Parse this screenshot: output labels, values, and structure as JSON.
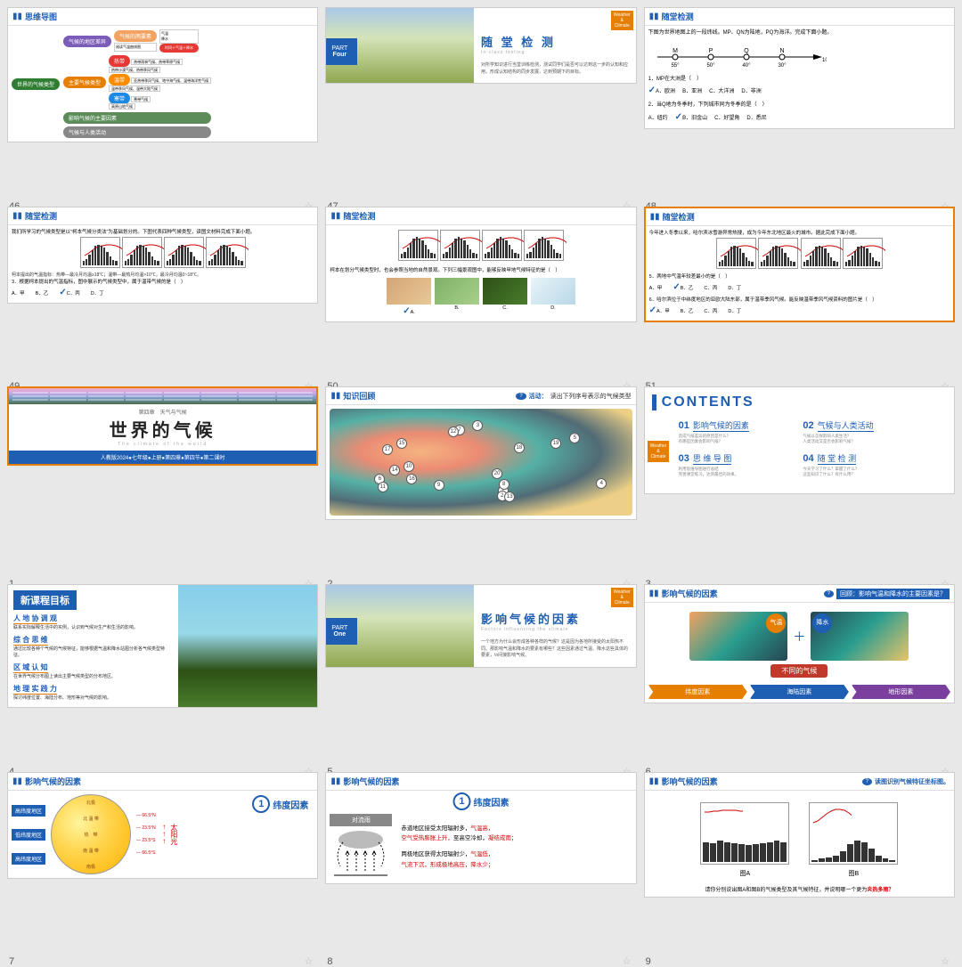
{
  "slides": [
    {
      "n": "46",
      "hdr": "思维导图",
      "type": "mindmap",
      "nodes": {
        "root": "世界的气候类型",
        "b1": "气候的地区差异",
        "b1a": "气候的两要素",
        "b1a1": "气温",
        "b1a2": "降水",
        "b1b": "阅读气温曲线图",
        "b1c": "时间＋气温＋降水",
        "b2": "主要气候类型",
        "b2a": "热带",
        "b2b": "温带",
        "b2c": "寒带",
        "b2a1": "热带雨林气候、热带草原气候",
        "b2a2": "热带沙漠气候、热带季风气候",
        "b2b1": "亚热带季风气候、地中海气候、温带海洋性气候",
        "b2b2": "温带季风气候、温带大陆气候",
        "b2c1": "寒带气候",
        "b2c2": "高原山地气候",
        "b3": "影响气候的主要因素",
        "b4": "气候与人类活动"
      },
      "colors": {
        "root": "#2e7d32",
        "b1": "#7b5cb8",
        "b2": "#e67e00",
        "b3": "#5b8c5a",
        "b4": "#888",
        "hot": "#e53935",
        "warm": "#fb8c00",
        "cold": "#1e88e5"
      }
    },
    {
      "n": "47",
      "type": "part",
      "part": "PART",
      "partnum": "Four",
      "title": "随 堂 检 测",
      "sub": "In-class testing",
      "desc": "对所学知识进行当堂训练检测，测试同学们是否可以达到这一步的认知和应用，形成认知结构的同步发展，达到预期下的目标。",
      "corner": "Weather & Climate"
    },
    {
      "n": "48",
      "hdr": "随堂检测",
      "type": "quiz",
      "text": "下图为世界地图上的一段纬线。MP、QN为陆地，PQ为海洋。完成下面小题。",
      "diagram": {
        "pts": [
          "M",
          "P",
          "Q",
          "N"
        ],
        "lons": [
          "55°",
          "50°",
          "40°",
          "30°"
        ],
        "end": "10°E"
      },
      "q1": "1．MP在大洲是（　）",
      "q1o": [
        "A．欧洲",
        "B．亚洲",
        "C．大洋洲",
        "D．非洲"
      ],
      "q1a": 0,
      "q2": "2．当Q地为冬季时，下列城市同为冬季的是（　）",
      "q2o": [
        "A．纽约",
        "B．旧金山",
        "C．好望角",
        "D．悉尼"
      ],
      "q2a": 1
    },
    {
      "n": "49",
      "hdr": "随堂检测",
      "type": "quiz2",
      "intro": "我们所学习的气候类型是以\"柯本气候分类法\"为基础划分的。下图代表四种气候类型，读图文材料完成下面小题。",
      "charts": 4,
      "note": "柯本提出的气温指标：热带—最冷月均温≥18℃；温带—最热月均温>10℃，最冷月均温0~18℃。",
      "q": "3．根据柯本提出的气温指标，图中展示的气候类型中，属于温带气候的是（　）",
      "opts": [
        "A．甲",
        "B．乙",
        "C．丙",
        "D．丁"
      ],
      "ans": 2
    },
    {
      "n": "50",
      "hdr": "随堂检测",
      "type": "quiz3",
      "intro": "柯本在划分气候类型时，也会参照当地的自然景观。下列三幅景观图中，能够反映甲地气候特征的是（　）",
      "charts": 4,
      "imgs": [
        "A",
        "B",
        "C",
        "D"
      ],
      "ans": 0
    },
    {
      "n": "51",
      "hdr": "随堂检测",
      "type": "quiz4",
      "sel": true,
      "intro": "今年进入冬季以来，哈尔滨冰雪游异常热搜，成为今年东北地区最火的城市。据此完成下面小题。",
      "charts": 2,
      "q5": "5．两地中气温年较差最小的是（　）",
      "q5o": [
        "A．甲",
        "B．乙",
        "C．丙",
        "D．丁"
      ],
      "q5a": 1,
      "q6": "6．哈尔滨位于中纬度地区的亚欧大陆东部，属于温带季风气候。能反映温带季风气候资料的图片是（　）",
      "q6o": [
        "A．甲",
        "B．乙",
        "C．丙",
        "D．丁"
      ],
      "q6a": 0
    },
    {
      "n": "1",
      "type": "cover",
      "sel": true,
      "ch": "第四章　天气与气候",
      "title": "世界的气候",
      "sub": "The climate of the world",
      "foot": "人教版2024●七年级●上册●第四章●第四节●第二课时"
    },
    {
      "n": "2",
      "hdr": "知识回顾",
      "type": "map",
      "badge": "活动",
      "badgetxt": "读出下列序号表示的气候类型"
    },
    {
      "n": "3",
      "type": "contents",
      "title": "CONTENTS",
      "items": [
        {
          "n": "01",
          "t": "影响气候的因素",
          "d": "造成气候差异的原因是什么？\\n有哪些因素会影响气候？"
        },
        {
          "n": "02",
          "t": "气候与人类活动",
          "d": "气候以怎样影响人类生活？\\n人类活动又是否会影响气候？"
        },
        {
          "n": "03",
          "t": "思 维 导 图",
          "d": "利用思维导图进行总结\\n完善课堂练习，达到最佳的效果。"
        },
        {
          "n": "04",
          "t": "随 堂 检 测",
          "d": "今天学习了什么？掌握了什么？\\n这些知识了什么？有什么用？"
        }
      ],
      "corner": "Weather & Climate"
    },
    {
      "n": "4",
      "type": "goals",
      "title": "新课程目标",
      "items": [
        {
          "t": "人 地 协 调 观",
          "d": "联系实际解释生活中的实例，认识到气候对生产和生活的影响。"
        },
        {
          "t": "综 合 思 维",
          "d": "通过比较各种个气候的气候特征，能够根据气温和降水站图分析各气候类型特征。"
        },
        {
          "t": "区 域 认 知",
          "d": "在世界气候分布图上读出主要气候类型的分布地区。"
        },
        {
          "t": "地 理 实 践 力",
          "d": "探讨纬度位置、海陆分布、地形等对气候的影响。"
        }
      ]
    },
    {
      "n": "5",
      "type": "part",
      "part": "PART",
      "partnum": "One",
      "title": "影响气候的因素",
      "sub": "Factors influencing the climate",
      "desc": "一个地方为什么会形成各种各样的气候？这是因为各地所接受的太阳热不同。那影响气温和降水的要素有哪些？这些因素通过气温、降水这些具体的要素，\\n间接影响气候。",
      "corner": "Weather & Climate"
    },
    {
      "n": "6",
      "hdr": "影响气候的因素",
      "type": "factors",
      "badge": "回顾",
      "badgetxt": "影响气温和降水的主要因素是？",
      "c1": "气温",
      "plus": "＋",
      "c2": "降水",
      "res": "不同的气候",
      "pills": [
        {
          "t": "纬度因素",
          "c": "#e67e00"
        },
        {
          "t": "海陆因素",
          "c": "#1e5fb3"
        },
        {
          "t": "地形因素",
          "c": "#7b3f9e"
        }
      ]
    },
    {
      "n": "7",
      "hdr": "影响气候的因素",
      "type": "lat1",
      "num": "1",
      "numt": "纬度因素",
      "labels": [
        "高纬度地区",
        "低纬度地区",
        "高纬度地区"
      ],
      "lats": [
        "66.5°N",
        "23.5°N",
        "23.5°S",
        "66.5°S"
      ],
      "zones": [
        "北 温 带",
        "热　带",
        "南 温 带"
      ],
      "poles": [
        "北极",
        "南极"
      ],
      "sun": "太阳光"
    },
    {
      "n": "8",
      "hdr": "影响气候的因素",
      "type": "lat2",
      "num": "1",
      "numt": "纬度因素",
      "rain": "对流雨",
      "p1": "赤道地区接受太阳辐射多，",
      "p1r": "气温高，",
      "p2": "空气受热膨胀上升，至高空冷却，",
      "p2r": "凝结成雨；",
      "p3": "两极地区获得太阳辐射少，",
      "p3r": "气温低，",
      "p4": "气流下沉，形成极地高压，降水少；"
    },
    {
      "n": "9",
      "hdr": "影响气候的因素",
      "type": "charts2",
      "badge": "读图",
      "badgetxt": "读图识别气候特征坐标图。",
      "l1": "图A",
      "l2": "图B",
      "q": "请你分别说出图A和图B的气候类型及其气候特征，并说明哪一个更为",
      "qr": "炎热多雨？"
    }
  ],
  "ui": {
    "star": "☆",
    "book": "📖"
  }
}
